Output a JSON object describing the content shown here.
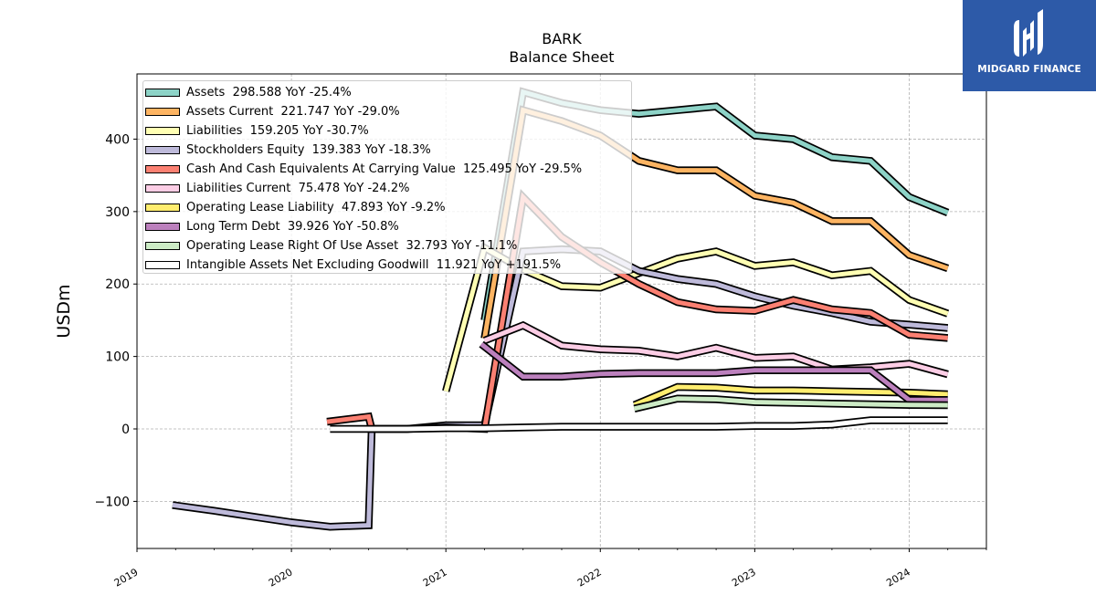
{
  "chart_data": {
    "type": "line",
    "title": "BARK",
    "subtitle": "Balance  Sheet",
    "ylabel": "USDm",
    "xlabel": "",
    "xlim": [
      2019.0,
      2024.5
    ],
    "ylim": [
      -165,
      490
    ],
    "x_ticks": [
      2019,
      2020,
      2021,
      2022,
      2023,
      2024
    ],
    "x_tick_labels": [
      "2019",
      "2020",
      "2021",
      "2022",
      "2023",
      "2024"
    ],
    "y_ticks": [
      -100,
      0,
      100,
      200,
      300,
      400
    ],
    "y_tick_labels": [
      "−100",
      "0",
      "100",
      "200",
      "300",
      "400"
    ],
    "grid": true,
    "legend_position": "top-left",
    "series": [
      {
        "name": "Assets  298.588 YoY -25.4%",
        "color": "#8dd3c7",
        "x": [
          2021.25,
          2021.5,
          2021.75,
          2022.0,
          2022.25,
          2022.5,
          2022.75,
          2023.0,
          2023.25,
          2023.5,
          2023.75,
          2024.0,
          2024.25
        ],
        "y": [
          150,
          465,
          450,
          440,
          435,
          440,
          445,
          405,
          400,
          375,
          370,
          320,
          298.588
        ]
      },
      {
        "name": "Assets Current  221.747 YoY -29.0%",
        "color": "#fdb462",
        "x": [
          2021.25,
          2021.5,
          2021.75,
          2022.0,
          2022.25,
          2022.5,
          2022.75,
          2023.0,
          2023.25,
          2023.5,
          2023.75,
          2024.0,
          2024.25
        ],
        "y": [
          125,
          440,
          425,
          405,
          370,
          357,
          357,
          322,
          312,
          287,
          287,
          240,
          221.747
        ]
      },
      {
        "name": "Liabilities  159.205 YoY -30.7%",
        "color": "#ffffb3",
        "x": [
          2021.0,
          2021.25,
          2021.5,
          2021.75,
          2022.0,
          2022.25,
          2022.5,
          2022.75,
          2023.0,
          2023.25,
          2023.5,
          2023.75,
          2024.0,
          2024.25
        ],
        "y": [
          52,
          250,
          220,
          197,
          195,
          215,
          235,
          245,
          225,
          230,
          212,
          218,
          178,
          159.205
        ]
      },
      {
        "name": "Stockholders Equity  139.383 YoY -18.3%",
        "color": "#bebada",
        "x": [
          2019.23,
          2019.5,
          2019.75,
          2020.0,
          2020.25,
          2020.5,
          2020.52,
          2020.75,
          2021.0,
          2021.25,
          2021.5,
          2021.75,
          2022.0,
          2022.25,
          2022.5,
          2022.75,
          2023.0,
          2023.25,
          2023.5,
          2023.75,
          2024.0,
          2024.25
        ],
        "y": [
          -105,
          -113,
          -121,
          -129,
          -135,
          -133,
          0,
          0,
          5,
          5,
          245,
          248,
          245,
          218,
          207,
          200,
          183,
          170,
          160,
          148,
          144,
          139.383
        ]
      },
      {
        "name": "Cash And Cash Equivalents At Carrying Value  125.495 YoY -29.5%",
        "color": "#fb8072",
        "x": [
          2020.23,
          2020.5,
          2020.52,
          2020.75,
          2021.0,
          2021.25,
          2021.5,
          2021.75,
          2022.0,
          2022.25,
          2022.5,
          2022.75,
          2023.0,
          2023.25,
          2023.5,
          2023.75,
          2024.0,
          2024.25
        ],
        "y": [
          10,
          17,
          0,
          0,
          2,
          0,
          320,
          265,
          230,
          200,
          175,
          165,
          163,
          178,
          165,
          160,
          130,
          125.495
        ]
      },
      {
        "name": "Liabilities Current  75.478 YoY -24.2%",
        "color": "#fccde5",
        "x": [
          2021.25,
          2021.5,
          2021.75,
          2022.0,
          2022.25,
          2022.5,
          2022.75,
          2023.0,
          2023.25,
          2023.5,
          2023.75,
          2024.0,
          2024.25
        ],
        "y": [
          122,
          143,
          115,
          110,
          108,
          100,
          112,
          98,
          100,
          82,
          85,
          90,
          75.478
        ]
      },
      {
        "name": "Operating Lease Liability  47.893 YoY -9.2%",
        "color": "#ffed6f",
        "x": [
          2022.22,
          2022.5,
          2022.75,
          2023.0,
          2023.25,
          2023.5,
          2023.75,
          2024.0,
          2024.25
        ],
        "y": [
          33,
          58,
          57,
          53,
          53,
          52,
          51,
          50,
          47.893
        ]
      },
      {
        "name": "Long Term Debt  39.926 YoY -50.8%",
        "color": "#bc80bd",
        "x": [
          2021.23,
          2021.5,
          2021.75,
          2022.0,
          2022.25,
          2022.5,
          2022.75,
          2023.0,
          2023.25,
          2023.5,
          2023.75,
          2024.0,
          2024.25
        ],
        "y": [
          117,
          72,
          72,
          76,
          77,
          77,
          77,
          81,
          81,
          81,
          81,
          40,
          39.926
        ]
      },
      {
        "name": "Operating Lease Right Of Use Asset  32.793 YoY -11.1%",
        "color": "#ccebc5",
        "x": [
          2022.22,
          2022.5,
          2022.75,
          2023.0,
          2023.25,
          2023.5,
          2023.75,
          2024.0,
          2024.25
        ],
        "y": [
          28,
          42,
          41,
          37,
          36,
          35,
          34,
          33,
          32.793
        ]
      },
      {
        "name": "Intangible Assets Net Excluding Goodwill  11.921 YoY +191.5%",
        "color": "#ffffff",
        "x": [
          2020.25,
          2020.5,
          2020.75,
          2021.0,
          2021.25,
          2021.5,
          2021.75,
          2022.0,
          2022.25,
          2022.5,
          2022.75,
          2023.0,
          2023.25,
          2023.5,
          2023.75,
          2024.0,
          2024.25
        ],
        "y": [
          0,
          0,
          0,
          1,
          1,
          2,
          3,
          3,
          3,
          3,
          3,
          4,
          4,
          6,
          12,
          12,
          11.921
        ]
      }
    ]
  },
  "logo": {
    "text": "MIDGARD FINANCE"
  }
}
